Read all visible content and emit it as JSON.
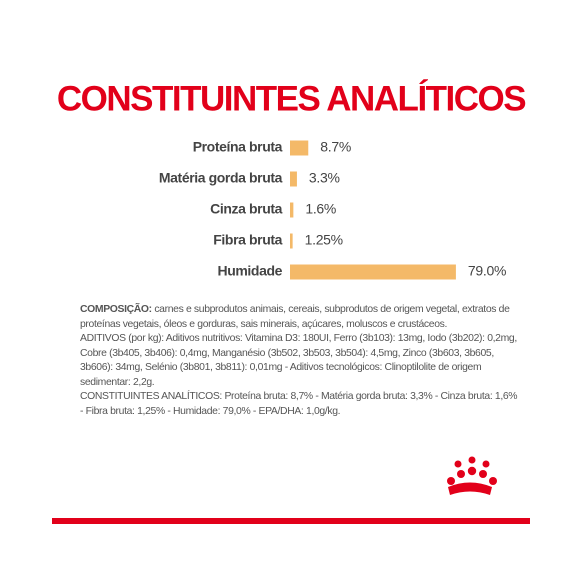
{
  "chart_data": {
    "type": "hbar",
    "title": "CONSTITUINTES ANALÍTICOS",
    "categories": [
      "Proteína bruta",
      "Matéria gorda bruta",
      "Cinza bruta",
      "Fibra bruta",
      "Humidade"
    ],
    "values": [
      8.7,
      3.3,
      1.6,
      1.25,
      79.0
    ],
    "value_labels": [
      "8.7%",
      "3.3%",
      "1.6%",
      "1.25%",
      "79.0%"
    ],
    "color": "#f4b968"
  },
  "text": {
    "composition_label": "COMPOSIÇÃO:",
    "composition": "carnes e subprodutos animais, cereais, subprodutos de origem vegetal, extratos de proteínas vegetais, óleos e gorduras, sais minerais, açúcares, moluscos e crustáceos.",
    "additives": "ADITIVOS (por kg): Aditivos nutritivos: Vitamina D3: 180UI, Ferro (3b103): 13mg, Iodo (3b202): 0,2mg, Cobre (3b405, 3b406): 0,4mg, Manganésio (3b502, 3b503, 3b504): 4,5mg, Zinco (3b603, 3b605, 3b606): 34mg, Selénio (3b801, 3b811): 0,01mg - Aditivos tecnológicos: Clinoptilolite de origem sedimentar: 2,2g.",
    "analytical": "CONSTITUINTES ANALÍTICOS: Proteína bruta: 8,7% - Matéria gorda bruta: 3,3% - Cinza bruta: 1,6% - Fibra bruta: 1,25% - Humidade: 79,0% - EPA/DHA: 1,0g/kg."
  }
}
